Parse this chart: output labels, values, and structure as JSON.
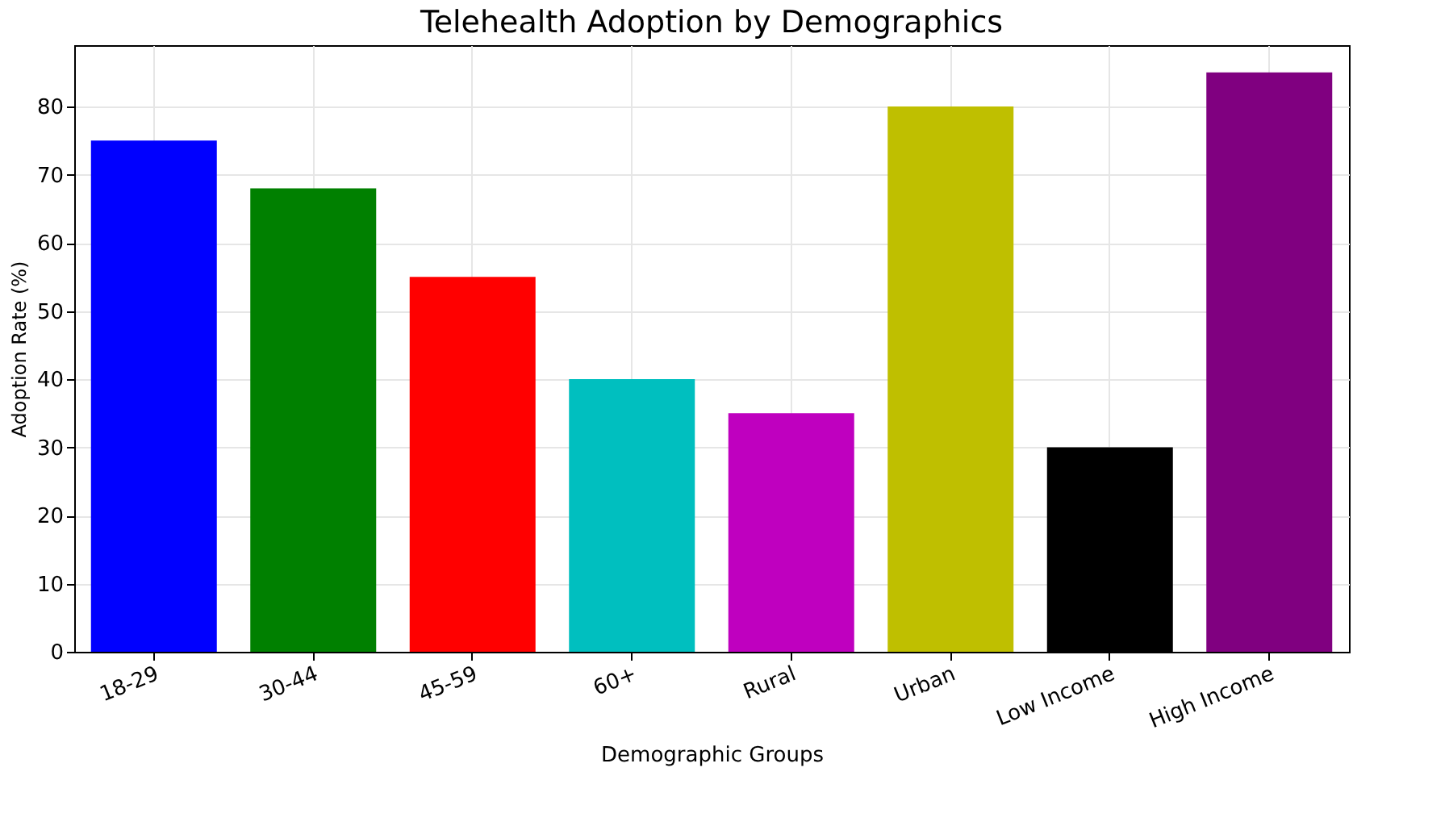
{
  "chart_data": {
    "type": "bar",
    "title": "Telehealth Adoption by Demographics",
    "xlabel": "Demographic Groups",
    "ylabel": "Adoption Rate (%)",
    "categories": [
      "18-29",
      "30-44",
      "45-59",
      "60+",
      "Rural",
      "Urban",
      "Low Income",
      "High Income"
    ],
    "values": [
      75,
      68,
      55,
      40,
      35,
      80,
      30,
      85
    ],
    "colors": [
      "#0000ff",
      "#008000",
      "#ff0000",
      "#00bfbf",
      "#bf00bf",
      "#bfbf00",
      "#000000",
      "#800080"
    ],
    "ylim": [
      0,
      89
    ],
    "yticks": [
      0,
      10,
      20,
      30,
      40,
      50,
      60,
      70,
      80
    ],
    "grid": true
  }
}
